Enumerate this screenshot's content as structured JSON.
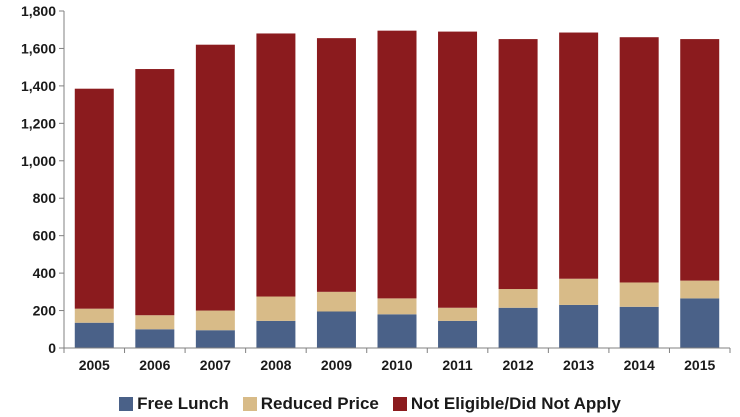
{
  "chart_data": {
    "type": "bar",
    "stacked": true,
    "title": "",
    "xlabel": "",
    "ylabel": "",
    "ylim": [
      0,
      1800
    ],
    "y_ticks": [
      0,
      200,
      400,
      600,
      800,
      1000,
      1200,
      1400,
      1600,
      1800
    ],
    "y_tick_labels": [
      "0",
      "200",
      "400",
      "600",
      "800",
      "1,000",
      "1,200",
      "1,400",
      "1,600",
      "1,800"
    ],
    "categories": [
      "2005",
      "2006",
      "2007",
      "2008",
      "2009",
      "2010",
      "2011",
      "2012",
      "2013",
      "2014",
      "2015"
    ],
    "series": [
      {
        "name": "Free Lunch",
        "color": "#4a6188",
        "values": [
          135,
          100,
          95,
          145,
          195,
          180,
          145,
          215,
          230,
          220,
          265
        ]
      },
      {
        "name": "Reduced Price",
        "color": "#d8bb88",
        "values": [
          75,
          75,
          105,
          130,
          105,
          85,
          70,
          100,
          140,
          130,
          95
        ]
      },
      {
        "name": "Not Eligible/Did Not Apply",
        "color": "#8b1b1e",
        "values": [
          1175,
          1315,
          1420,
          1405,
          1355,
          1430,
          1475,
          1335,
          1315,
          1310,
          1290
        ]
      }
    ],
    "legend_position": "bottom",
    "grid": false
  }
}
